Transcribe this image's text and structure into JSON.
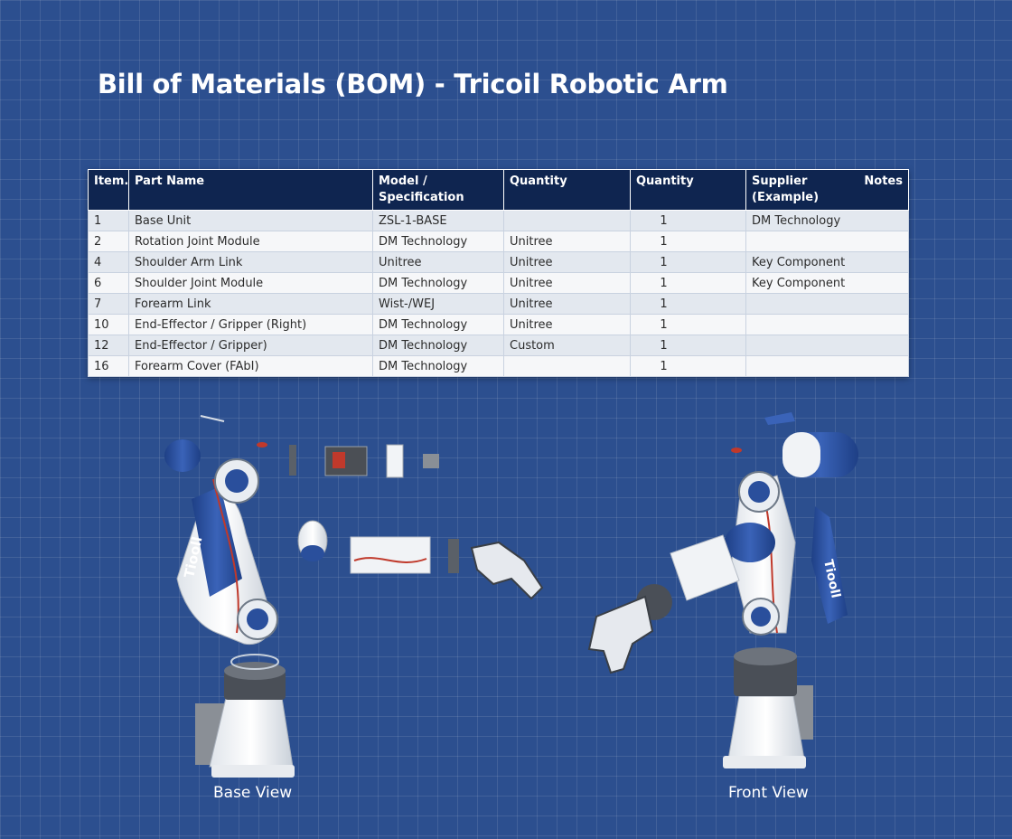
{
  "title": "Bill of Materials (BOM) - Tricoil Robotic Arm",
  "table": {
    "headers": {
      "item": "Item.",
      "part_name": "Part Name",
      "model_line1": "Model /",
      "model_line2": "Specification",
      "quantity_a": "Quantity",
      "quantity_b": "Quantity",
      "supplier_line1": "Supplier",
      "supplier_line2": "(Example)",
      "notes": "Notes"
    },
    "rows": [
      {
        "item": "1",
        "part": "Base Unit",
        "model": "ZSL-1-BASE",
        "col4": "",
        "qty": "1",
        "supplier": "DM Technology"
      },
      {
        "item": "2",
        "part": "Rotation Joint Module",
        "model": "DM Technology",
        "col4": "Unitree",
        "qty": "1",
        "supplier": ""
      },
      {
        "item": "4",
        "part": "Shoulder Arm Link",
        "model": "Unitree",
        "col4": "Unitree",
        "qty": "1",
        "supplier": "Key Component"
      },
      {
        "item": "6",
        "part": "Shoulder Joint Module",
        "model": "DM Technology",
        "col4": "Unitree",
        "qty": "1",
        "supplier": "Key Component"
      },
      {
        "item": "7",
        "part": "Forearm Link",
        "model": "Wist-/WEJ",
        "col4": "Unitree",
        "qty": "1",
        "supplier": ""
      },
      {
        "item": "10",
        "part": "End-Effector / Gripper (Right)",
        "model": "DM Technology",
        "col4": "Unitree",
        "qty": "1",
        "supplier": ""
      },
      {
        "item": "12",
        "part": "End-Effector / Gripper)",
        "model": "DM Technology",
        "col4": "Custom",
        "qty": "1",
        "supplier": ""
      },
      {
        "item": "16",
        "part": "Forearm Cover (FAbI)",
        "model": "DM Technology",
        "col4": "",
        "qty": "1",
        "supplier": ""
      }
    ]
  },
  "illustration": {
    "arm_label_left": "Tiooll",
    "arm_label_right": "Tiooll"
  },
  "captions": {
    "base_view": "Base View",
    "front_view": "Front View"
  },
  "colors": {
    "background": "#2c4f8f",
    "header_bg": "#0f2550",
    "arm_blue": "#2a4f9c"
  }
}
